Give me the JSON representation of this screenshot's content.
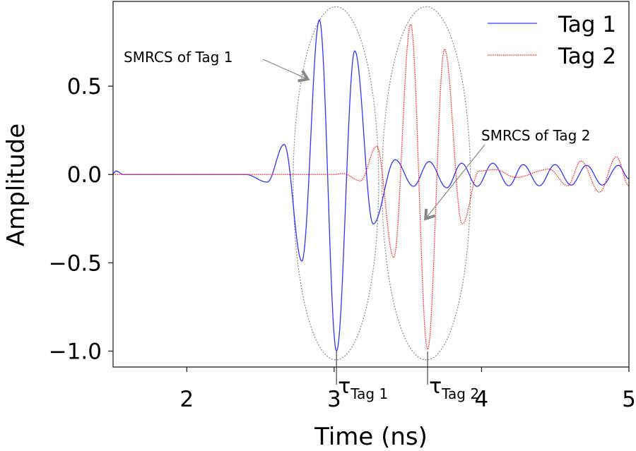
{
  "chart_data": {
    "type": "line",
    "title": "",
    "xlabel": "Time (ns)",
    "ylabel": "Amplitude",
    "xlim": [
      1.5,
      5.0
    ],
    "ylim": [
      -1.09,
      0.98
    ],
    "grid": false,
    "xticks": [
      2,
      3,
      4,
      5
    ],
    "xtick_labels": [
      "2",
      "3",
      "4",
      "5"
    ],
    "yticks": [
      0.5,
      0.0,
      -0.5,
      -1.0
    ],
    "ytick_labels": [
      "0.5",
      "0.0",
      "−0.5",
      "−1.0"
    ],
    "legend_position": "top-right",
    "series": [
      {
        "name": "Tag 1",
        "color": "#3333ff",
        "style": "solid",
        "extrema": [
          [
            1.5,
            0.005
          ],
          [
            1.52,
            0.02
          ],
          [
            1.57,
            0.0
          ],
          [
            2.4,
            0.0
          ],
          [
            2.546,
            -0.043
          ],
          [
            2.661,
            0.17
          ],
          [
            2.781,
            -0.49
          ],
          [
            2.9,
            0.876
          ],
          [
            3.016,
            -1.0
          ],
          [
            3.14,
            0.7
          ],
          [
            3.265,
            -0.28
          ],
          [
            3.414,
            0.084
          ],
          [
            3.538,
            -0.067
          ],
          [
            3.644,
            0.073
          ],
          [
            3.764,
            -0.075
          ],
          [
            3.865,
            0.064
          ],
          [
            3.97,
            -0.067
          ],
          [
            4.076,
            0.064
          ],
          [
            4.186,
            -0.064
          ],
          [
            4.282,
            0.056
          ],
          [
            4.392,
            -0.064
          ],
          [
            4.498,
            0.056
          ],
          [
            4.608,
            -0.06
          ],
          [
            4.713,
            0.052
          ],
          [
            4.819,
            -0.06
          ],
          [
            4.929,
            0.052
          ],
          [
            5.0,
            -0.024
          ]
        ]
      },
      {
        "name": "Tag 2",
        "color": "#ff2222",
        "style": "dotted",
        "extrema": [
          [
            1.5,
            0.0
          ],
          [
            3.0,
            0.0
          ],
          [
            3.06,
            0.005
          ],
          [
            3.179,
            -0.036
          ],
          [
            3.289,
            0.16
          ],
          [
            3.404,
            -0.47
          ],
          [
            3.519,
            0.85
          ],
          [
            3.634,
            -0.99
          ],
          [
            3.749,
            0.71
          ],
          [
            3.869,
            -0.28
          ],
          [
            3.984,
            0.02
          ],
          [
            4.09,
            0.028
          ],
          [
            4.234,
            -0.016
          ],
          [
            4.459,
            0.03
          ],
          [
            4.584,
            -0.064
          ],
          [
            4.675,
            0.076
          ],
          [
            4.8,
            -0.1
          ],
          [
            4.915,
            0.1
          ],
          [
            5.0,
            -0.064
          ]
        ]
      }
    ],
    "annotations": [
      {
        "text": "SMRCS of Tag 1",
        "points_to": [
          2.82,
          0.54
        ]
      },
      {
        "text": "SMRCS of Tag 2",
        "points_to": [
          3.62,
          -0.25
        ]
      }
    ],
    "regions": [
      {
        "center": [
          3.012,
          -0.05
        ],
        "radius": [
          0.29,
          1.0
        ]
      },
      {
        "center": [
          3.625,
          -0.05
        ],
        "radius": [
          0.3,
          1.0
        ]
      }
    ],
    "markers": [
      {
        "label": "τ",
        "sub": "Tag 1",
        "x": 3.016
      },
      {
        "label": "τ",
        "sub": "Tag 2",
        "x": 3.634
      }
    ]
  }
}
